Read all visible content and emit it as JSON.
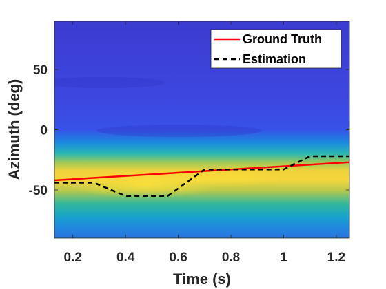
{
  "chart_data": {
    "type": "heatmap",
    "title": "",
    "xlabel": "Time (s)",
    "ylabel": "Azimuth (deg)",
    "xlim": [
      0.13,
      1.25
    ],
    "ylim": [
      -90,
      90
    ],
    "xticks": [
      0.2,
      0.4,
      0.6,
      0.8,
      1,
      1.2
    ],
    "xtick_labels": [
      "0.2",
      "0.4",
      "0.6",
      "0.8",
      "1",
      "1.2"
    ],
    "yticks": [
      50,
      0,
      -50
    ],
    "ytick_labels": [
      "50",
      "0",
      "-50"
    ],
    "grid": false,
    "legend_position": "top-right",
    "colormap": "parula",
    "background_color": "#3a3fd6",
    "series": [
      {
        "name": "Ground Truth",
        "style": "solid",
        "color": "#ff0000",
        "x": [
          0.13,
          1.25
        ],
        "y": [
          -42,
          -27
        ]
      },
      {
        "name": "Estimation",
        "style": "dashed",
        "color": "#000000",
        "x": [
          0.13,
          0.28,
          0.4,
          0.56,
          0.7,
          1.0,
          1.1,
          1.25
        ],
        "y": [
          -44,
          -44,
          -55,
          -55,
          -33,
          -33,
          -22,
          -22
        ]
      }
    ]
  }
}
